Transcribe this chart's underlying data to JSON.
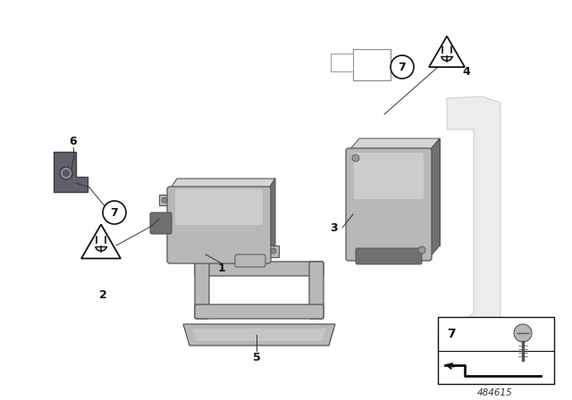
{
  "bg_color": "#ffffff",
  "fig_width": 6.4,
  "fig_height": 4.48,
  "diagram_number": "484615",
  "gray_light": "#b8b8b8",
  "gray_mid": "#909090",
  "gray_dark": "#707070",
  "gray_very_light": "#d5d5d5",
  "gray_ghost": "#cccccc",
  "outline_color": "#555555",
  "label_color": "#111111",
  "clip_color": "#606068"
}
